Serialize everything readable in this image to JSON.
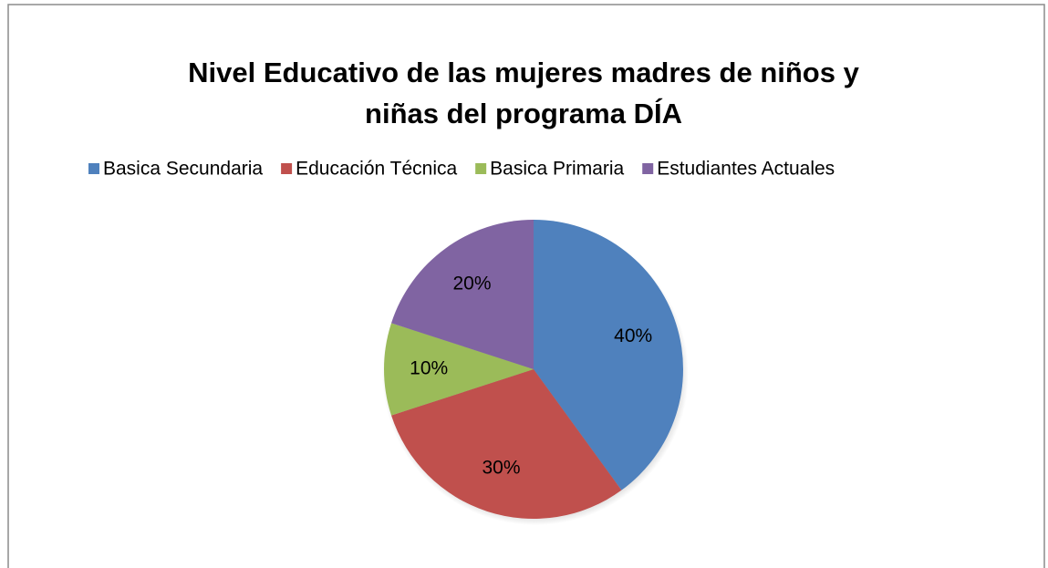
{
  "chart_data": {
    "type": "pie",
    "title": [
      "Nivel  Educativo  de las mujeres madres de niños y",
      "niñas  del programa DÍA"
    ],
    "categories": [
      "Basica Secundaria",
      "Educación Técnica",
      "Basica Primaria",
      "Estudiantes Actuales"
    ],
    "values": [
      40,
      30,
      10,
      20
    ],
    "value_labels": [
      "40%",
      "30%",
      "10%",
      "20%"
    ],
    "colors": [
      "#4f81bd",
      "#c0504d",
      "#9bbb59",
      "#8064a2"
    ],
    "legend": "top"
  }
}
